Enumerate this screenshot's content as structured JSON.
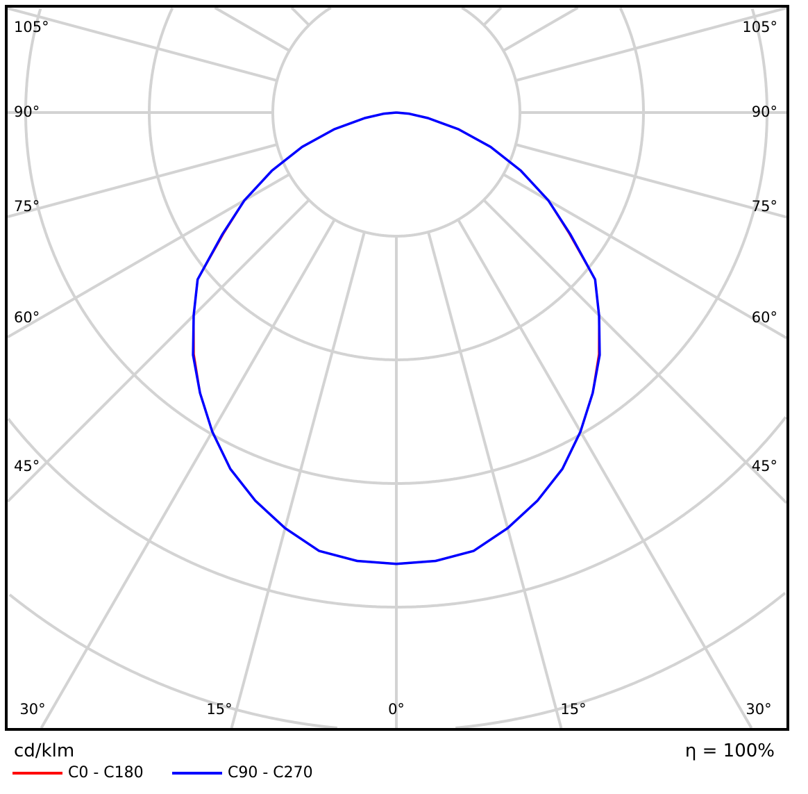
{
  "chart_data": {
    "type": "polar",
    "unit_label": "cd/klm",
    "efficiency_label": "η = 100%",
    "angle_labels_left": [
      "105°",
      "90°",
      "75°",
      "60°",
      "45°"
    ],
    "angle_labels_bottom": [
      "30°",
      "15°",
      "0°",
      "15°",
      "30°"
    ],
    "angle_labels_right": [
      "105°",
      "90°",
      "75°",
      "60°",
      "45°"
    ],
    "grid": true,
    "grid_angle_step_deg": 15,
    "radial_ring_step": 100,
    "legend_placement": "bottom-left",
    "angles_deg": [
      0,
      5,
      10,
      15,
      20,
      25,
      30,
      35,
      40,
      45,
      50,
      55,
      60,
      65,
      70,
      75,
      80,
      85,
      90
    ],
    "series": [
      {
        "name": "C0 - C180",
        "color": "#ff0000",
        "values": [
          365,
          364,
          360,
          348,
          334,
          318,
          298,
          277,
          255,
          232,
          210,
          171,
          142,
          111,
          81,
          52,
          26,
          10,
          0
        ]
      },
      {
        "name": "C90 - C270",
        "color": "#0000ff",
        "values": [
          365,
          364,
          360,
          348,
          334,
          318,
          298,
          277,
          256,
          232,
          210,
          172,
          142,
          111,
          81,
          52,
          26,
          10,
          0
        ]
      }
    ]
  }
}
